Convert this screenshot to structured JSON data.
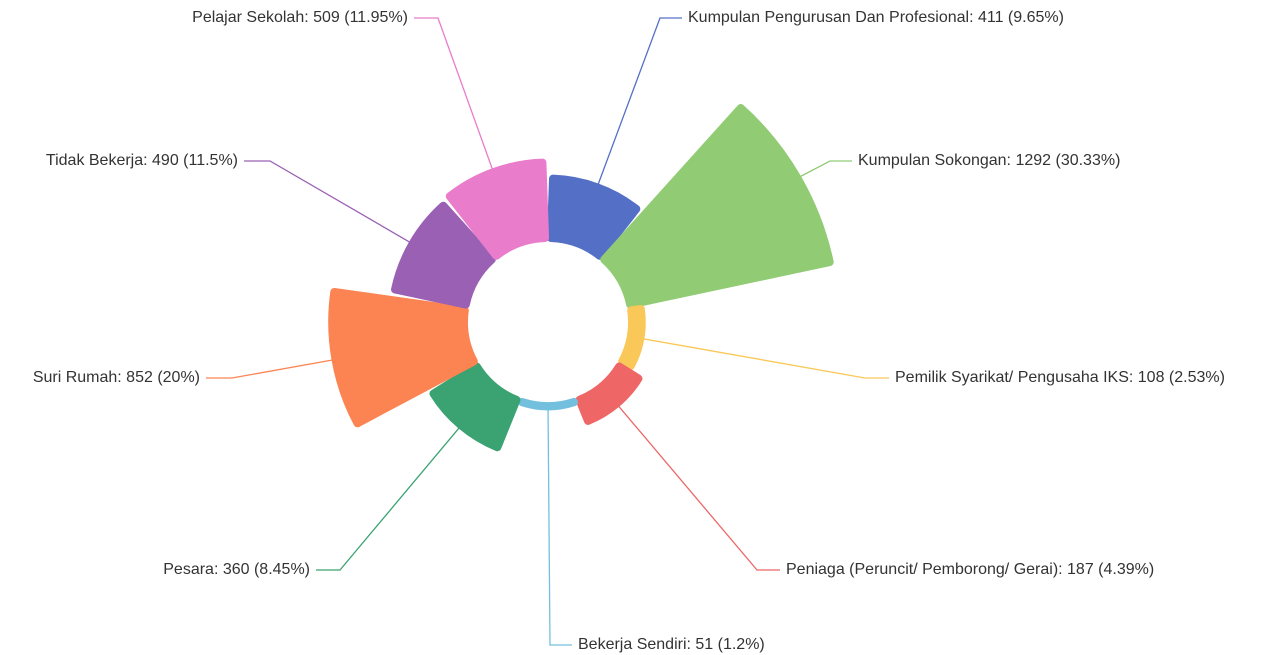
{
  "chart_data": {
    "type": "rose",
    "labels": [
      "Kumpulan Pengurusan Dan Profesional: 411 (9.65%)",
      "Kumpulan Sokongan: 1292 (30.33%)",
      "Pemilik Syarikat/ Pengusaha IKS: 108 (2.53%)",
      "Peniaga (Peruncit/ Pemborong/ Gerai): 187 (4.39%)",
      "Bekerja Sendiri: 51 (1.2%)",
      "Pesara: 360 (8.45%)",
      "Suri Rumah: 852 (20%)",
      "Tidak Bekerja: 490 (11.5%)",
      "Pelajar Sekolah: 509 (11.95%)"
    ],
    "values": [
      411,
      1292,
      108,
      187,
      51,
      360,
      852,
      490,
      509
    ],
    "colors": [
      "#5470c6",
      "#91cc75",
      "#fac858",
      "#ee6666",
      "#73c0de",
      "#3ba272",
      "#fc8452",
      "#9a60b4",
      "#ea7ccc"
    ]
  }
}
